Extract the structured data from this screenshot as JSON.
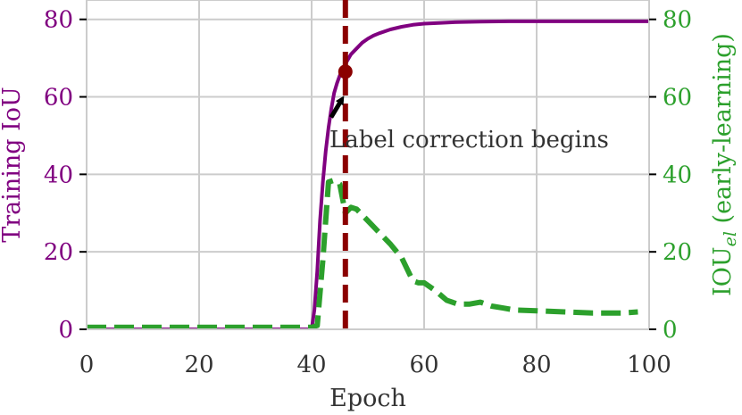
{
  "chart_data": {
    "type": "line",
    "title": "",
    "xlabel": "Epoch",
    "ylabel_left": "Training IoU",
    "ylabel_right": "IOU",
    "ylabel_right_subscript": "el",
    "ylabel_right_suffix": " (early-learning)",
    "xlim": [
      0,
      100
    ],
    "ylim_left": [
      0,
      85
    ],
    "ylim_right": [
      0,
      85
    ],
    "x_ticks": [
      0,
      20,
      40,
      60,
      80,
      100
    ],
    "y_ticks_left": [
      0,
      20,
      40,
      60,
      80
    ],
    "y_ticks_right": [
      0,
      20,
      40,
      60,
      80
    ],
    "grid": true,
    "colors": {
      "left_axis": "#800080",
      "right_axis": "#2ca02c",
      "vline": "#8b0000",
      "grid": "#cccccc",
      "spine": "#cccccc",
      "arrow": "#000000"
    },
    "series": [
      {
        "axis": "left",
        "color": "#800080",
        "style": "solid",
        "x": [
          0,
          38,
          40,
          40.5,
          41,
          41.5,
          42,
          42.5,
          43,
          43.5,
          44,
          44.5,
          45,
          45.5,
          46,
          47,
          48,
          49,
          50,
          51,
          52,
          54,
          56,
          58,
          60,
          63,
          66,
          70,
          75,
          80,
          90,
          100
        ],
        "y": [
          0,
          0,
          0,
          5,
          15,
          28,
          38,
          46,
          52,
          57,
          61,
          63.5,
          65.5,
          67,
          68.5,
          71,
          72.5,
          74,
          75,
          75.8,
          76.4,
          77.4,
          78.1,
          78.6,
          78.9,
          79.1,
          79.3,
          79.4,
          79.5,
          79.5,
          79.5,
          79.5
        ]
      },
      {
        "axis": "right",
        "color": "#2ca02c",
        "style": "dashed",
        "x": [
          0,
          39,
          40,
          41,
          42,
          43,
          44,
          45,
          46,
          47,
          48,
          50,
          52,
          54,
          56,
          58,
          59,
          60,
          62,
          64,
          66,
          68,
          70,
          72,
          74,
          76,
          80,
          85,
          90,
          95,
          98
        ],
        "y": [
          0.5,
          0.5,
          0.5,
          1,
          18,
          38,
          38.5,
          37.5,
          30,
          31.5,
          31,
          28,
          25,
          22,
          18.5,
          12.5,
          12,
          12,
          10,
          7.5,
          6.5,
          6.5,
          7,
          6,
          5.5,
          5,
          4.8,
          4.5,
          4.2,
          4.2,
          4.5
        ]
      }
    ],
    "vline": {
      "x": 46,
      "color": "#8b0000",
      "style": "dashed"
    },
    "marker_point": {
      "x": 46,
      "y": 66.5,
      "color": "#8b0000"
    },
    "annotation": {
      "text": "Label correction begins",
      "arrow_to": {
        "x": 46,
        "y": 63
      }
    }
  }
}
